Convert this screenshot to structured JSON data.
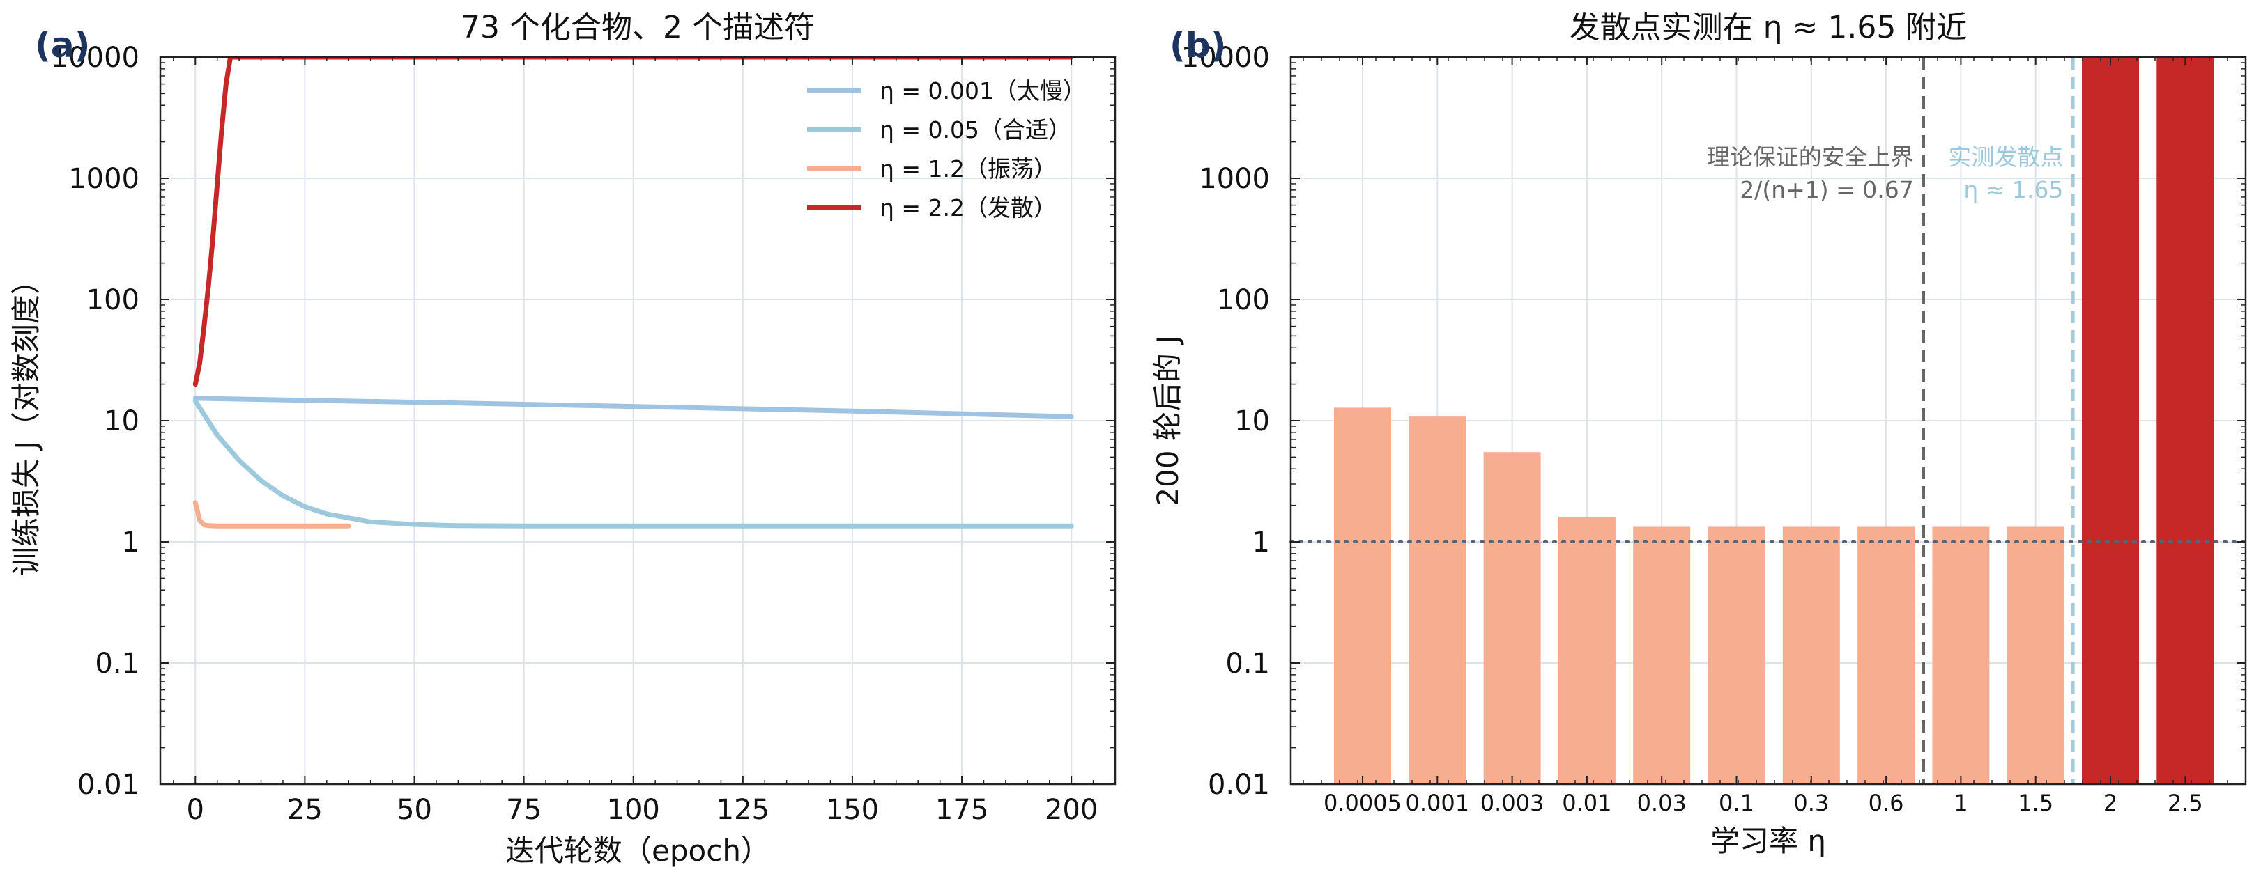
{
  "chart_data": [
    {
      "type": "line",
      "panel_label": "(a)",
      "title": "73 个化合物、2 个描述符",
      "xlabel": "迭代轮数（epoch）",
      "ylabel": "训练损失 J（对数刻度）",
      "xlim": [
        -8,
        210
      ],
      "ylim": [
        0.01,
        10000
      ],
      "yscale": "log",
      "grid": true,
      "legend_position": "top-right",
      "xticks": [
        0,
        25,
        50,
        75,
        100,
        125,
        150,
        175,
        200
      ],
      "yticks": [
        0.01,
        0.1,
        1,
        10,
        100,
        1000,
        10000
      ],
      "ytick_labels": [
        "0.01",
        "0.1",
        "1",
        "10",
        "100",
        "1000",
        "10000"
      ],
      "series": [
        {
          "name": "η = 0.001（太慢）",
          "color": "#9ec3e3",
          "x": [
            0,
            50,
            100,
            150,
            200
          ],
          "y": [
            15.3,
            14.2,
            13.1,
            12.0,
            10.8
          ]
        },
        {
          "name": "η = 0.05（合适）",
          "color": "#9ccadc",
          "x": [
            0,
            5,
            10,
            15,
            20,
            25,
            30,
            40,
            50,
            60,
            75,
            100,
            150,
            200
          ],
          "y": [
            14.5,
            7.6,
            4.7,
            3.2,
            2.4,
            1.95,
            1.7,
            1.46,
            1.39,
            1.36,
            1.35,
            1.35,
            1.35,
            1.35
          ]
        },
        {
          "name": "η = 1.2（振荡）",
          "color": "#f6ad90",
          "x": [
            0,
            1,
            2,
            3,
            5,
            10,
            20,
            35
          ],
          "y": [
            2.1,
            1.5,
            1.38,
            1.36,
            1.35,
            1.35,
            1.35,
            1.35
          ]
        },
        {
          "name": "η = 2.2（发散）",
          "color": "#c62828",
          "x": [
            0,
            1,
            2,
            3,
            4,
            5,
            6,
            7,
            8,
            200
          ],
          "y": [
            20,
            30,
            60,
            130,
            320,
            900,
            2500,
            6000,
            10000,
            10000
          ]
        }
      ]
    },
    {
      "type": "bar",
      "panel_label": "(b)",
      "title": "发散点实测在 η ≈ 1.65 附近",
      "xlabel": "学习率 η",
      "ylabel": "200 轮后的 J",
      "ylim": [
        0.01,
        10000
      ],
      "yscale": "log",
      "grid": true,
      "categories": [
        "0.0005",
        "0.001",
        "0.003",
        "0.01",
        "0.03",
        "0.1",
        "0.3",
        "0.6",
        "1",
        "1.5",
        "2",
        "2.5"
      ],
      "values": [
        12.8,
        10.8,
        5.5,
        1.6,
        1.33,
        1.33,
        1.33,
        1.33,
        1.33,
        1.33,
        10000,
        10000
      ],
      "bar_colors": [
        "#f6ad90",
        "#f6ad90",
        "#f6ad90",
        "#f6ad90",
        "#f6ad90",
        "#f6ad90",
        "#f6ad90",
        "#f6ad90",
        "#f6ad90",
        "#f6ad90",
        "#c62828",
        "#c62828"
      ],
      "yticks": [
        0.01,
        0.1,
        1,
        10,
        100,
        1000,
        10000
      ],
      "ytick_labels": [
        "0.01",
        "0.1",
        "1",
        "10",
        "100",
        "1000",
        "10000"
      ],
      "reference_line_y": 1,
      "annotations": [
        {
          "line_after_category": "0.6",
          "color": "#666666",
          "line1": "理论保证的安全上界",
          "line2": "2/(n+1) = 0.67"
        },
        {
          "line_after_category": "1.5",
          "color": "#9ccadc",
          "line1": "实测发散点",
          "line2": "η ≈ 1.65"
        }
      ]
    }
  ]
}
